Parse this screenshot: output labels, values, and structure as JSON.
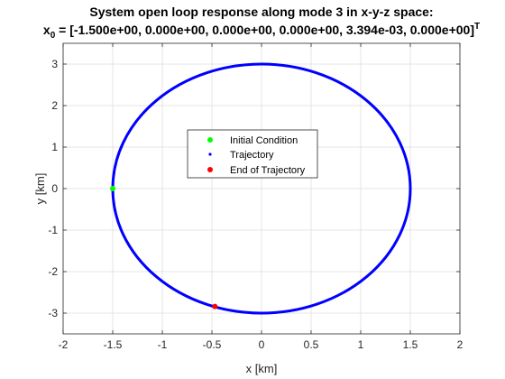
{
  "chart_data": {
    "type": "scatter",
    "title_line1": "System open loop response along mode 3 in x-y-z space:",
    "title_line2_prefix": "x",
    "title_line2_subscript": "0",
    "title_line2_body": " = [-1.500e+00, 0.000e+00, 0.000e+00, 0.000e+00, 3.394e-03, 0.000e+00]",
    "title_line2_superscript": "T",
    "xlabel": "x [km]",
    "ylabel": "y [km]",
    "xlim": [
      -2,
      2
    ],
    "ylim": [
      -3.5,
      3.5
    ],
    "xticks": [
      -2,
      -1.5,
      -1,
      -0.5,
      0,
      0.5,
      1,
      1.5,
      2
    ],
    "xtick_labels": [
      "-2",
      "-1.5",
      "-1",
      "-0.5",
      "0",
      "0.5",
      "1",
      "1.5",
      "2"
    ],
    "yticks": [
      -3,
      -2,
      -1,
      0,
      1,
      2,
      3
    ],
    "ytick_labels": [
      "-3",
      "-2",
      "-1",
      "0",
      "1",
      "2",
      "3"
    ],
    "grid": true,
    "legend_position": "center",
    "series": [
      {
        "name": "Initial Condition",
        "color": "#00ff00",
        "marker": "dot",
        "points": [
          {
            "x": -1.5,
            "y": 0
          }
        ]
      },
      {
        "name": "Trajectory",
        "color": "#0000ff",
        "marker": "point",
        "shape": "ellipse",
        "center": [
          0,
          0
        ],
        "semi_axis_x": 1.5,
        "semi_axis_y": 3.0
      },
      {
        "name": "End of Trajectory",
        "color": "#ff0000",
        "marker": "dot",
        "points": [
          {
            "x": -0.47,
            "y": -2.84
          }
        ]
      }
    ]
  }
}
